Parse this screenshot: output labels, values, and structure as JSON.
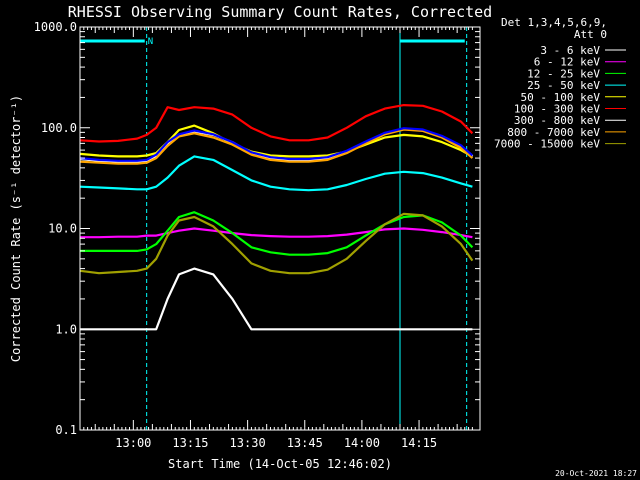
{
  "chart_data": {
    "type": "line",
    "title": "RHESSI Observing Summary Count Rates, Corrected",
    "xlabel": "Start Time (14-Oct-05 12:46:02)",
    "ylabel": "Corrected Count Rate (s⁻¹ detector⁻¹)",
    "x_unit": "minutes after 12:46:02",
    "xlim": [
      0,
      105
    ],
    "ylim": [
      0.1,
      1000.0
    ],
    "y_scale": "log",
    "grid": false,
    "legend_position": "top-right",
    "legend_header": [
      "Det 1,3,4,5,6,9,",
      "Att 0"
    ],
    "x_ticks": [
      "13:00",
      "13:15",
      "13:30",
      "13:45",
      "14:00",
      "14:15"
    ],
    "x_tick_values": [
      14,
      29,
      44,
      59,
      74,
      89
    ],
    "y_ticks": [
      "1000.0",
      "100.0",
      "10.0",
      "1.0",
      "0.1"
    ],
    "y_tick_values": [
      1000,
      100,
      10,
      1,
      0.1
    ],
    "timestamp": "20-Oct-2021 18:27",
    "top_bar_label": "N",
    "top_bars": [
      [
        0,
        17
      ],
      [
        84,
        101
      ]
    ],
    "vertical_markers": [
      {
        "x": 0,
        "style": "solid"
      },
      {
        "x": 17.5,
        "style": "dashed"
      },
      {
        "x": 84,
        "style": "solid"
      },
      {
        "x": 101.5,
        "style": "dashed"
      }
    ],
    "x": [
      0,
      5,
      10,
      15,
      17.5,
      20,
      23,
      26,
      30,
      35,
      40,
      45,
      50,
      55,
      60,
      65,
      70,
      75,
      80,
      85,
      90,
      95,
      100,
      103
    ],
    "series": [
      {
        "name": "3 - 6 keV",
        "color": "#ffffff",
        "values": [
          1.0,
          1.0,
          1.0,
          1.0,
          1.0,
          1.0,
          2.0,
          3.5,
          4.0,
          3.5,
          2.0,
          1.0,
          1.0,
          1.0,
          1.0,
          1.0,
          1.0,
          1.0,
          1.0,
          1.0,
          1.0,
          1.0,
          1.0,
          1.0
        ]
      },
      {
        "name": "6 - 12 keV",
        "color": "#ff00ff",
        "values": [
          8.2,
          8.2,
          8.3,
          8.3,
          8.5,
          8.5,
          9.0,
          9.5,
          10.0,
          9.5,
          9.0,
          8.6,
          8.4,
          8.3,
          8.3,
          8.4,
          8.7,
          9.2,
          9.8,
          10.0,
          9.7,
          9.2,
          8.6,
          8.2
        ]
      },
      {
        "name": "12 - 25 keV",
        "color": "#00ff00",
        "values": [
          6.0,
          6.0,
          6.0,
          6.0,
          6.2,
          7.0,
          9.5,
          13.0,
          14.5,
          12.0,
          9.0,
          6.5,
          5.8,
          5.5,
          5.5,
          5.7,
          6.5,
          8.5,
          11.0,
          13.0,
          13.5,
          11.5,
          8.5,
          6.5
        ]
      },
      {
        "name": "25 - 50 keV",
        "color": "#00ffff",
        "values": [
          26.0,
          25.5,
          25.0,
          24.5,
          24.5,
          26.0,
          32.0,
          42.0,
          52.0,
          48.0,
          38.0,
          30.0,
          26.0,
          24.5,
          24.0,
          24.5,
          27.0,
          31.0,
          35.0,
          36.5,
          35.5,
          32.0,
          28.0,
          26.0
        ]
      },
      {
        "name": "50 - 100 keV",
        "color": "#ffff00",
        "values": [
          55.0,
          53.0,
          52.0,
          52.0,
          53.0,
          56.0,
          72.0,
          95.0,
          105.0,
          88.0,
          70.0,
          58.0,
          53.0,
          52.0,
          52.0,
          53.0,
          58.0,
          68.0,
          80.0,
          85.0,
          82.0,
          72.0,
          60.0,
          52.0
        ]
      },
      {
        "name": "100 - 300 keV",
        "color": "#ff0000",
        "values": [
          75.0,
          73.0,
          74.0,
          78.0,
          85.0,
          100.0,
          160.0,
          150.0,
          160.0,
          155.0,
          135.0,
          100.0,
          82.0,
          75.0,
          75.0,
          80.0,
          100.0,
          130.0,
          155.0,
          168.0,
          165.0,
          145.0,
          115.0,
          88.0
        ]
      },
      {
        "name": "300 - 800 keV",
        "color": "#ffffff",
        "values": [
          49.0,
          47.0,
          46.0,
          46.0,
          47.0,
          52.0,
          70.0,
          85.0,
          92.0,
          85.0,
          72.0,
          56.0,
          50.0,
          48.0,
          48.0,
          50.0,
          58.0,
          72.0,
          88.0,
          98.0,
          95.0,
          82.0,
          66.0,
          52.0
        ]
      },
      {
        "name": "800 - 7000 keV",
        "color": "#ffa500",
        "values": [
          46.0,
          45.0,
          44.0,
          44.0,
          45.0,
          50.0,
          66.0,
          82.0,
          88.0,
          80.0,
          68.0,
          54.0,
          48.0,
          46.0,
          46.0,
          48.0,
          56.0,
          70.0,
          86.0,
          96.0,
          93.0,
          80.0,
          63.0,
          50.0
        ]
      },
      {
        "name": "7000 - 15000 keV",
        "color": "#a0a000",
        "values": [
          3.8,
          3.6,
          3.7,
          3.8,
          4.0,
          5.0,
          8.5,
          12.0,
          13.0,
          10.5,
          7.0,
          4.5,
          3.8,
          3.6,
          3.6,
          3.9,
          5.0,
          7.5,
          11.0,
          14.0,
          13.5,
          10.5,
          7.0,
          4.8
        ]
      }
    ],
    "series_overlay": {
      "name": "",
      "color": "#0000ff",
      "values": [
        50.0,
        48.0,
        47.0,
        47.0,
        48.0,
        54.0,
        72.0,
        86.0,
        94.0,
        86.0,
        72.0,
        57.0,
        51.0,
        49.0,
        49.0,
        51.0,
        59.0,
        73.0,
        89.0,
        99.0,
        96.0,
        83.0,
        67.0,
        53.0
      ]
    }
  }
}
